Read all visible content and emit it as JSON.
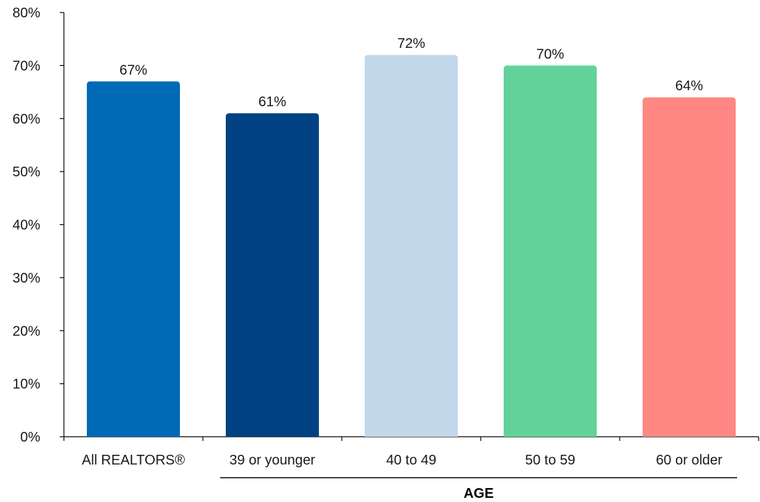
{
  "chart_data": {
    "type": "bar",
    "categories": [
      "All REALTORS®",
      "39 or younger",
      "40 to 49",
      "50 to 59",
      "60 or older"
    ],
    "values": [
      67,
      61,
      72,
      70,
      64
    ],
    "value_labels": [
      "67%",
      "61%",
      "72%",
      "70%",
      "64%"
    ],
    "colors": [
      "#006ab7",
      "#004282",
      "#c2d8ea",
      "#62d29a",
      "#ff8784"
    ],
    "ylim": [
      0,
      80
    ],
    "yticks": [
      0,
      10,
      20,
      30,
      40,
      50,
      60,
      70,
      80
    ],
    "ytick_labels": [
      "0%",
      "10%",
      "20%",
      "30%",
      "40%",
      "50%",
      "60%",
      "70%",
      "80%"
    ],
    "group_label": "AGE",
    "group_span": [
      "39 or younger",
      "60 or older"
    ],
    "title": "",
    "xlabel": "",
    "ylabel": "",
    "grid": false,
    "legend": "none"
  }
}
